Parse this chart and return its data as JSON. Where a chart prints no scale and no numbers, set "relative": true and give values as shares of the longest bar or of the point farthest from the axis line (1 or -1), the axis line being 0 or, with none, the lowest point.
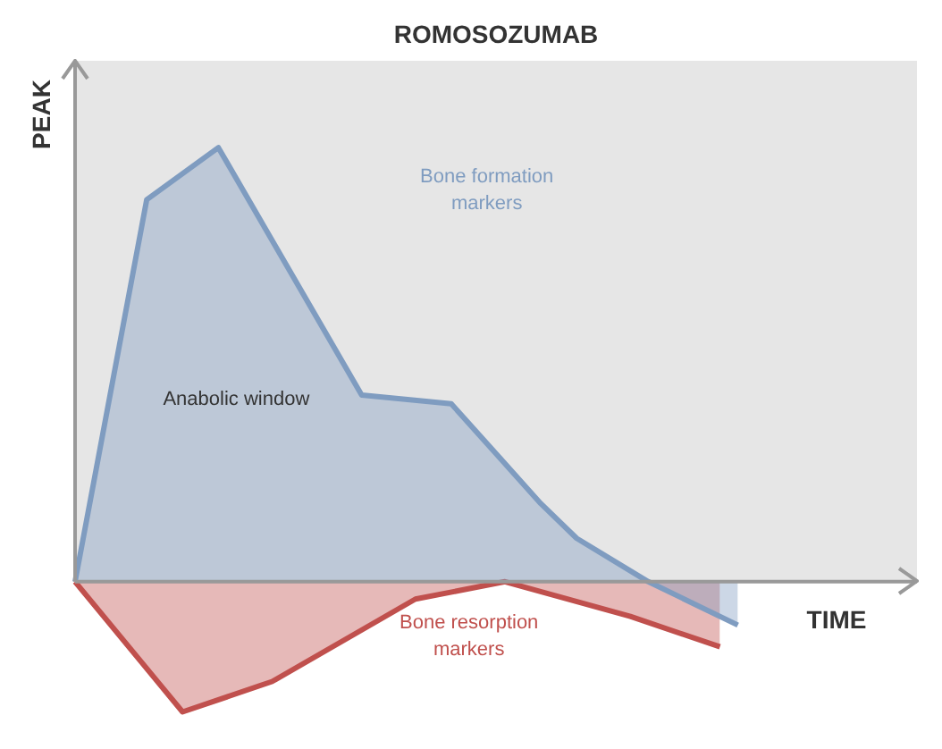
{
  "chart_data": {
    "type": "area",
    "title": "ROMOSOZUMAB",
    "xlabel": "TIME",
    "ylabel": "PEAK",
    "relative": true,
    "annotations": [
      "Anabolic window"
    ],
    "categories": [
      null,
      null,
      null,
      null,
      null,
      null,
      null,
      null,
      null,
      null,
      null,
      null,
      null,
      null,
      null,
      null,
      null,
      null,
      null,
      null,
      null,
      null,
      null,
      null,
      null,
      null,
      null,
      null,
      null,
      null,
      null,
      null,
      null,
      null,
      null,
      null,
      null,
      null,
      null,
      null,
      null,
      null,
      null,
      null,
      null,
      null,
      null,
      null
    ],
    "series": [
      {
        "name": "Bone formation markers",
        "color": "#7f9cc0",
        "values": [
          0,
          null,
          null,
          null,
          0.88,
          null,
          null,
          null,
          1,
          null,
          null,
          null,
          null,
          null,
          null,
          null,
          0.43,
          null,
          null,
          null,
          null,
          0.41,
          null,
          null,
          null,
          null,
          0.18,
          null,
          0.1,
          null,
          null,
          null,
          0,
          null,
          null,
          null,
          null,
          -0.1,
          null,
          null,
          null,
          null,
          null,
          null,
          null,
          null,
          null,
          null
        ]
      },
      {
        "name": "Bone resorption markers",
        "color": "#c0504d",
        "values": [
          0,
          null,
          null,
          null,
          null,
          null,
          -0.3,
          null,
          null,
          null,
          null,
          -0.23,
          null,
          null,
          null,
          null,
          null,
          null,
          null,
          -0.04,
          null,
          null,
          null,
          null,
          0,
          null,
          null,
          null,
          null,
          null,
          null,
          -0.08,
          null,
          null,
          null,
          null,
          -0.15,
          null,
          null,
          null,
          null,
          null,
          null,
          null,
          null,
          null,
          null,
          null
        ]
      }
    ]
  }
}
